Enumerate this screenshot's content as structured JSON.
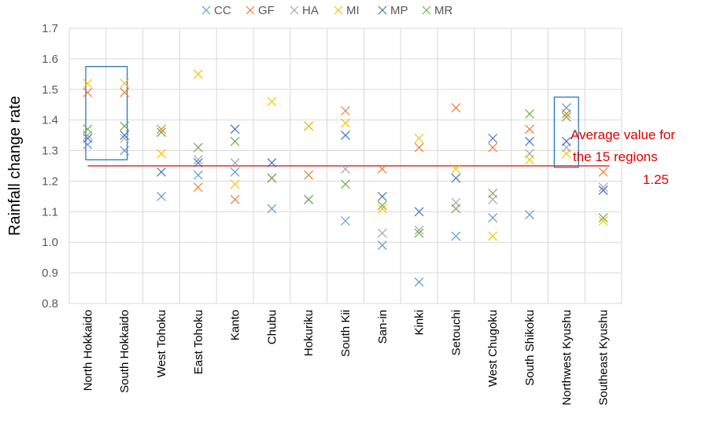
{
  "chart_data": {
    "type": "scatter",
    "title": "",
    "xlabel": "",
    "ylabel": "Rainfall change rate",
    "ylim": [
      0.8,
      1.7
    ],
    "yticks": [
      "0.8",
      "0.9",
      "1.0",
      "1.1",
      "1.2",
      "1.3",
      "1.4",
      "1.5",
      "1.6",
      "1.7"
    ],
    "grid": true,
    "legend_position": "top",
    "marker": "×",
    "categories": [
      "North Hokkaido",
      "South Hokkaido",
      "West Tohoku",
      "East Tohoku",
      "Kanto",
      "Chubu",
      "Hokuriku",
      "South Kii",
      "San-in",
      "Kinki",
      "Setouchi",
      "West Chugoku",
      "South Shikoku",
      "Northwest Kyushu",
      "Southeast Kyushu"
    ],
    "series": [
      {
        "name": "CC",
        "color": "#5b9bd5",
        "values": [
          1.32,
          1.3,
          1.15,
          1.22,
          1.23,
          1.11,
          1.38,
          1.07,
          0.99,
          0.87,
          1.02,
          1.08,
          1.09,
          1.44,
          1.17
        ]
      },
      {
        "name": "GF",
        "color": "#ed7d31",
        "values": [
          1.49,
          1.49,
          1.37,
          1.18,
          1.14,
          1.21,
          1.22,
          1.43,
          1.24,
          1.31,
          1.44,
          1.31,
          1.37,
          1.42,
          1.23
        ]
      },
      {
        "name": "HA",
        "color": "#a5a5a5",
        "values": [
          1.35,
          1.34,
          1.36,
          1.27,
          1.26,
          1.21,
          1.38,
          1.24,
          1.03,
          1.04,
          1.13,
          1.14,
          1.29,
          1.31,
          1.18
        ]
      },
      {
        "name": "MI",
        "color": "#ffc000",
        "values": [
          1.52,
          1.52,
          1.29,
          1.55,
          1.19,
          1.46,
          1.38,
          1.39,
          1.11,
          1.34,
          1.24,
          1.02,
          1.27,
          1.29,
          1.07
        ]
      },
      {
        "name": "MP",
        "color": "#4472c4",
        "values": [
          1.34,
          1.35,
          1.23,
          1.26,
          1.37,
          1.26,
          1.14,
          1.35,
          1.15,
          1.1,
          1.21,
          1.34,
          1.33,
          1.33,
          1.17
        ]
      },
      {
        "name": "MR",
        "color": "#70ad47",
        "values": [
          1.37,
          1.38,
          1.36,
          1.31,
          1.33,
          1.21,
          1.14,
          1.19,
          1.12,
          1.03,
          1.11,
          1.16,
          1.42,
          1.41,
          1.08
        ]
      }
    ],
    "average_line": {
      "value": 1.25,
      "color": "#e03030"
    },
    "annotation": {
      "lines": [
        "Average value for",
        "the 15 regions",
        "1.25"
      ],
      "color": "#e00000"
    },
    "highlight_boxes": [
      {
        "categories": [
          "North Hokkaido",
          "South Hokkaido"
        ],
        "y_range": [
          1.27,
          1.575
        ],
        "color": "#2e75b6"
      },
      {
        "categories": [
          "Northwest Kyushu"
        ],
        "y_range": [
          1.245,
          1.475
        ],
        "color": "#2e75b6"
      }
    ]
  }
}
